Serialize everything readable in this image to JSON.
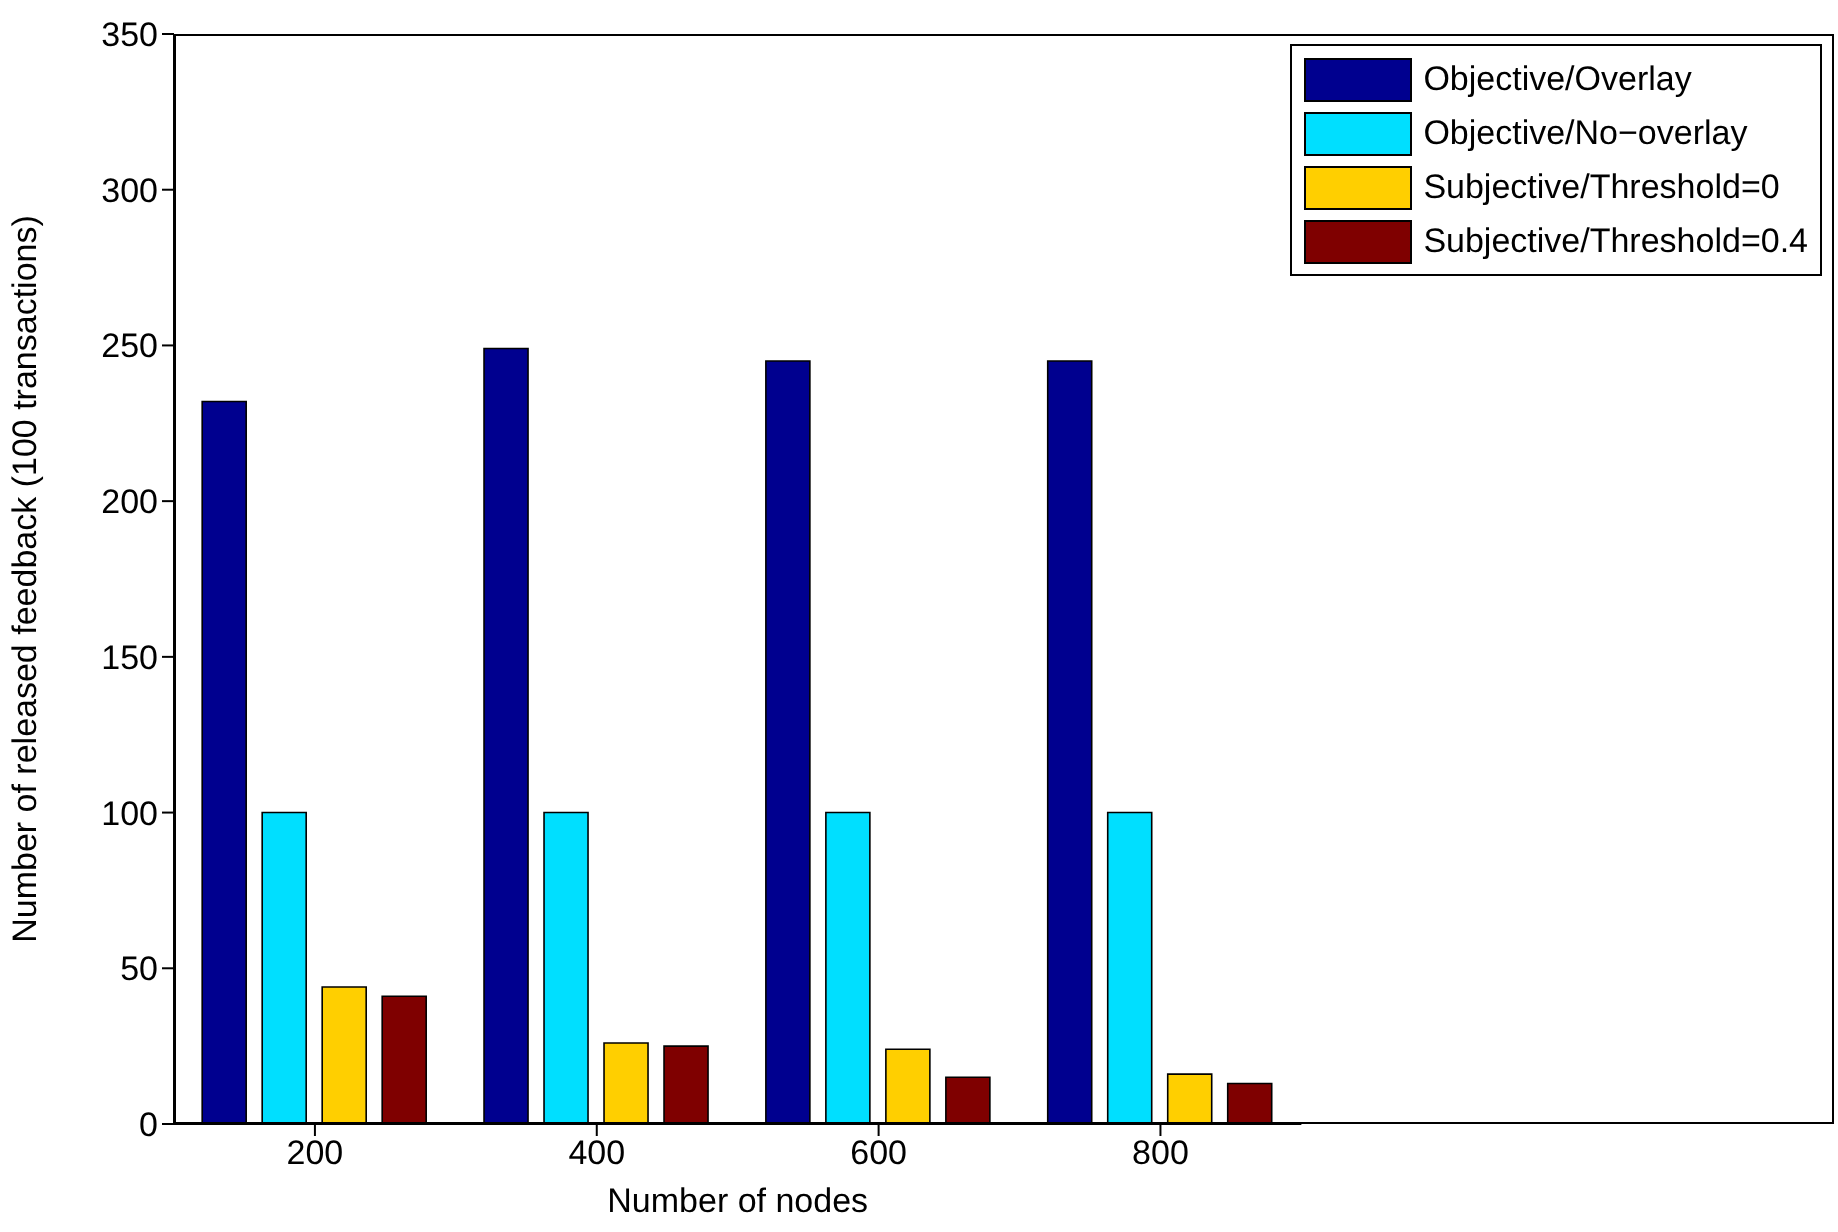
{
  "chart_data": {
    "type": "bar",
    "xlabel": "Number of nodes",
    "ylabel": "Number of released feedback (100 transactions)",
    "categories": [
      "200",
      "400",
      "600",
      "800"
    ],
    "series": [
      {
        "name": "Objective/Overlay",
        "color": "#00008f",
        "values": [
          232,
          249,
          245,
          245
        ]
      },
      {
        "name": "Objective/No−overlay",
        "color": "#00dfff",
        "values": [
          100,
          100,
          100,
          100
        ]
      },
      {
        "name": "Subjective/Threshold=0",
        "color": "#ffcf00",
        "values": [
          44,
          26,
          24,
          16
        ]
      },
      {
        "name": "Subjective/Threshold=0.4",
        "color": "#7f0000",
        "values": [
          41,
          25,
          15,
          13
        ]
      }
    ],
    "ylim": [
      0,
      350
    ],
    "yticks": [
      0,
      50,
      100,
      150,
      200,
      250,
      300,
      350
    ],
    "grid": false,
    "legend": "top right"
  }
}
